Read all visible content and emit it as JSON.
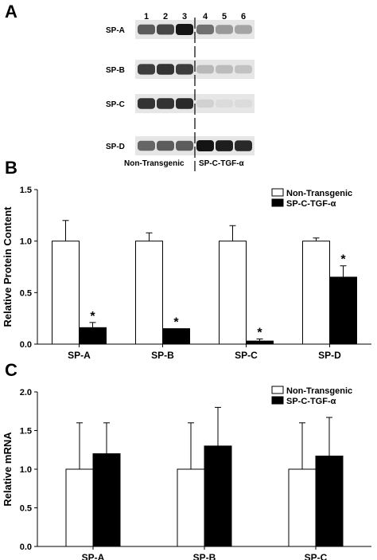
{
  "panels": {
    "a": "A",
    "b": "B",
    "c": "C"
  },
  "blot": {
    "lanes": [
      "1",
      "2",
      "3",
      "4",
      "5",
      "6"
    ],
    "rows": [
      {
        "label": "SP-A",
        "intensity": [
          0.65,
          0.75,
          1.0,
          0.55,
          0.35,
          0.3
        ]
      },
      {
        "label": "SP-B",
        "intensity": [
          0.8,
          0.85,
          0.8,
          0.2,
          0.18,
          0.15
        ]
      },
      {
        "label": "SP-C",
        "intensity": [
          0.85,
          0.85,
          0.9,
          0.08,
          0.03,
          0.03
        ]
      },
      {
        "label": "SP-D",
        "intensity": [
          0.6,
          0.65,
          0.65,
          1.0,
          0.95,
          0.9
        ]
      }
    ],
    "group_labels": [
      "Non-Transgenic",
      "SP-C-TGF-α"
    ]
  },
  "chart_data": [
    {
      "type": "bar",
      "panel": "B",
      "categories": [
        "SP-A",
        "SP-B",
        "SP-C",
        "SP-D"
      ],
      "series": [
        {
          "name": "Non-Transgenic",
          "values": [
            1.0,
            1.0,
            1.0,
            1.0
          ],
          "errors": [
            0.2,
            0.08,
            0.15,
            0.03
          ],
          "color": "#ffffff"
        },
        {
          "name": "SP-C-TGF-α",
          "values": [
            0.16,
            0.15,
            0.03,
            0.65
          ],
          "errors": [
            0.05,
            0.0,
            0.02,
            0.11
          ],
          "color": "#000000"
        }
      ],
      "annotations": [
        "*",
        "*",
        "*",
        "*"
      ],
      "xlabel": "",
      "ylabel": "Relative Protein Content",
      "ylim": [
        0,
        1.5
      ],
      "yticks": [
        "0.0",
        "0.5",
        "1.0",
        "1.5"
      ],
      "legend": "top-right",
      "grid": false
    },
    {
      "type": "bar",
      "panel": "C",
      "categories": [
        "SP-A",
        "SP-B",
        "SP-C"
      ],
      "series": [
        {
          "name": "Non-Transgenic",
          "values": [
            1.0,
            1.0,
            1.0
          ],
          "errors": [
            0.6,
            0.6,
            0.6
          ],
          "color": "#ffffff"
        },
        {
          "name": "SP-C-TGF-α",
          "values": [
            1.2,
            1.3,
            1.17
          ],
          "errors": [
            0.4,
            0.5,
            0.5
          ],
          "color": "#000000"
        }
      ],
      "xlabel": "",
      "ylabel": "Relative mRNA",
      "ylim": [
        0,
        2.0
      ],
      "yticks": [
        "0.0",
        "0.5",
        "1.0",
        "1.5",
        "2.0"
      ],
      "legend": "top-right",
      "grid": false
    }
  ]
}
